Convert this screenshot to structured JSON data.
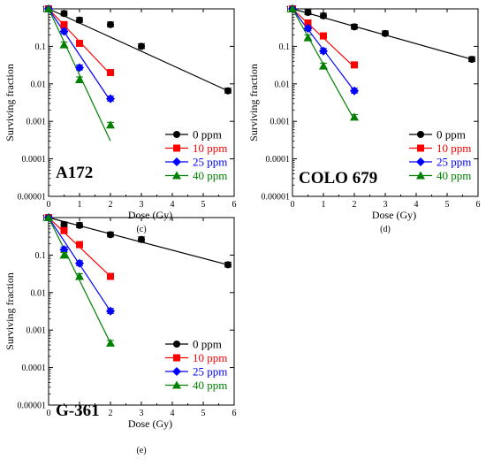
{
  "colors": {
    "0 ppm": "#000000",
    "10 ppm": "#ff0000",
    "25 ppm": "#0000ff",
    "40 ppm": "#008000"
  },
  "chart_data": [
    {
      "type": "scatter",
      "panel_label": "(c)",
      "inset_label": "A172",
      "xlabel": "Dose (Gy)",
      "ylabel": "Surviving fraction",
      "xlim": [
        0,
        6
      ],
      "ylim": [
        1e-05,
        1
      ],
      "yscale": "log",
      "x_ticks": [
        "0",
        "1",
        "2",
        "3",
        "4",
        "5",
        "6"
      ],
      "y_ticks": [
        "1",
        "0.1",
        "0.01",
        "0.001",
        "0.0001",
        "0.00001"
      ],
      "legend_position": "bottom-right",
      "series": [
        {
          "name": "0 ppm",
          "marker": "circle",
          "x": [
            0,
            0.5,
            1,
            2,
            3,
            5.8
          ],
          "y": [
            1,
            0.75,
            0.5,
            0.38,
            0.1,
            0.0065
          ],
          "fit": [
            [
              0,
              1
            ],
            [
              5.8,
              0.0065
            ]
          ]
        },
        {
          "name": "10 ppm",
          "marker": "square",
          "x": [
            0,
            0.5,
            1,
            2
          ],
          "y": [
            1,
            0.38,
            0.12,
            0.02
          ],
          "fit": [
            [
              0,
              1
            ],
            [
              2,
              0.018
            ]
          ]
        },
        {
          "name": "25 ppm",
          "marker": "diamond",
          "x": [
            0,
            0.5,
            1,
            2
          ],
          "y": [
            1,
            0.25,
            0.027,
            0.004
          ],
          "fit": [
            [
              0,
              1
            ],
            [
              2,
              0.0035
            ]
          ]
        },
        {
          "name": "40 ppm",
          "marker": "triangle",
          "x": [
            0,
            0.5,
            1,
            2
          ],
          "y": [
            1,
            0.11,
            0.013,
            0.0008
          ],
          "fit": [
            [
              0,
              1
            ],
            [
              2,
              0.0003
            ]
          ]
        }
      ]
    },
    {
      "type": "scatter",
      "panel_label": "(d)",
      "inset_label": "COLO 679",
      "xlabel": "Dose (Gy)",
      "ylabel": "Surviving fraction",
      "xlim": [
        0,
        6
      ],
      "ylim": [
        1e-05,
        1
      ],
      "yscale": "log",
      "x_ticks": [
        "0",
        "1",
        "2",
        "3",
        "4",
        "5",
        "6"
      ],
      "y_ticks": [
        "1",
        "0.1",
        "0.01",
        "0.001",
        "0.0001",
        "0.00001"
      ],
      "legend_position": "bottom-right",
      "series": [
        {
          "name": "0 ppm",
          "marker": "circle",
          "x": [
            0,
            0.5,
            1,
            2,
            3,
            5.8
          ],
          "y": [
            1,
            0.8,
            0.65,
            0.33,
            0.22,
            0.045
          ],
          "fit": [
            [
              0,
              1
            ],
            [
              5.8,
              0.045
            ]
          ]
        },
        {
          "name": "10 ppm",
          "marker": "square",
          "x": [
            0,
            0.5,
            1,
            2
          ],
          "y": [
            1,
            0.42,
            0.19,
            0.032
          ],
          "fit": [
            [
              0,
              1
            ],
            [
              2,
              0.028
            ]
          ]
        },
        {
          "name": "25 ppm",
          "marker": "diamond",
          "x": [
            0,
            0.5,
            1,
            2
          ],
          "y": [
            1,
            0.3,
            0.075,
            0.0065
          ],
          "fit": [
            [
              0,
              1
            ],
            [
              2,
              0.0065
            ]
          ]
        },
        {
          "name": "40 ppm",
          "marker": "triangle",
          "x": [
            0,
            0.5,
            1,
            2
          ],
          "y": [
            1,
            0.17,
            0.03,
            0.0013
          ],
          "fit": [
            [
              0,
              1
            ],
            [
              2,
              0.0011
            ]
          ]
        }
      ]
    },
    {
      "type": "scatter",
      "panel_label": "(e)",
      "inset_label": "G-361",
      "xlabel": "Dose (Gy)",
      "ylabel": "Surviving fraction",
      "xlim": [
        0,
        6
      ],
      "ylim": [
        1e-05,
        1
      ],
      "yscale": "log",
      "x_ticks": [
        "0",
        "1",
        "2",
        "3",
        "4",
        "5",
        "6"
      ],
      "y_ticks": [
        "1",
        "0.1",
        "0.01",
        "0.001",
        "0.0001",
        "0.00001"
      ],
      "legend_position": "bottom-right",
      "series": [
        {
          "name": "0 ppm",
          "marker": "circle",
          "x": [
            0,
            0.5,
            1,
            2,
            3,
            5.8
          ],
          "y": [
            1,
            0.65,
            0.62,
            0.35,
            0.26,
            0.055
          ],
          "fit": [
            [
              0,
              1
            ],
            [
              5.8,
              0.055
            ]
          ]
        },
        {
          "name": "10 ppm",
          "marker": "square",
          "x": [
            0,
            0.5,
            1,
            2
          ],
          "y": [
            1,
            0.45,
            0.19,
            0.027
          ],
          "fit": [
            [
              0,
              1
            ],
            [
              2,
              0.027
            ]
          ]
        },
        {
          "name": "25 ppm",
          "marker": "diamond",
          "x": [
            0,
            0.5,
            1,
            2
          ],
          "y": [
            1,
            0.14,
            0.06,
            0.0032
          ],
          "fit": [
            [
              0,
              1
            ],
            [
              2,
              0.0032
            ]
          ]
        },
        {
          "name": "40 ppm",
          "marker": "triangle",
          "x": [
            0,
            0.5,
            1,
            2
          ],
          "y": [
            1,
            0.1,
            0.027,
            0.00045
          ],
          "fit": [
            [
              0,
              1
            ],
            [
              2,
              0.00045
            ]
          ]
        }
      ]
    }
  ]
}
